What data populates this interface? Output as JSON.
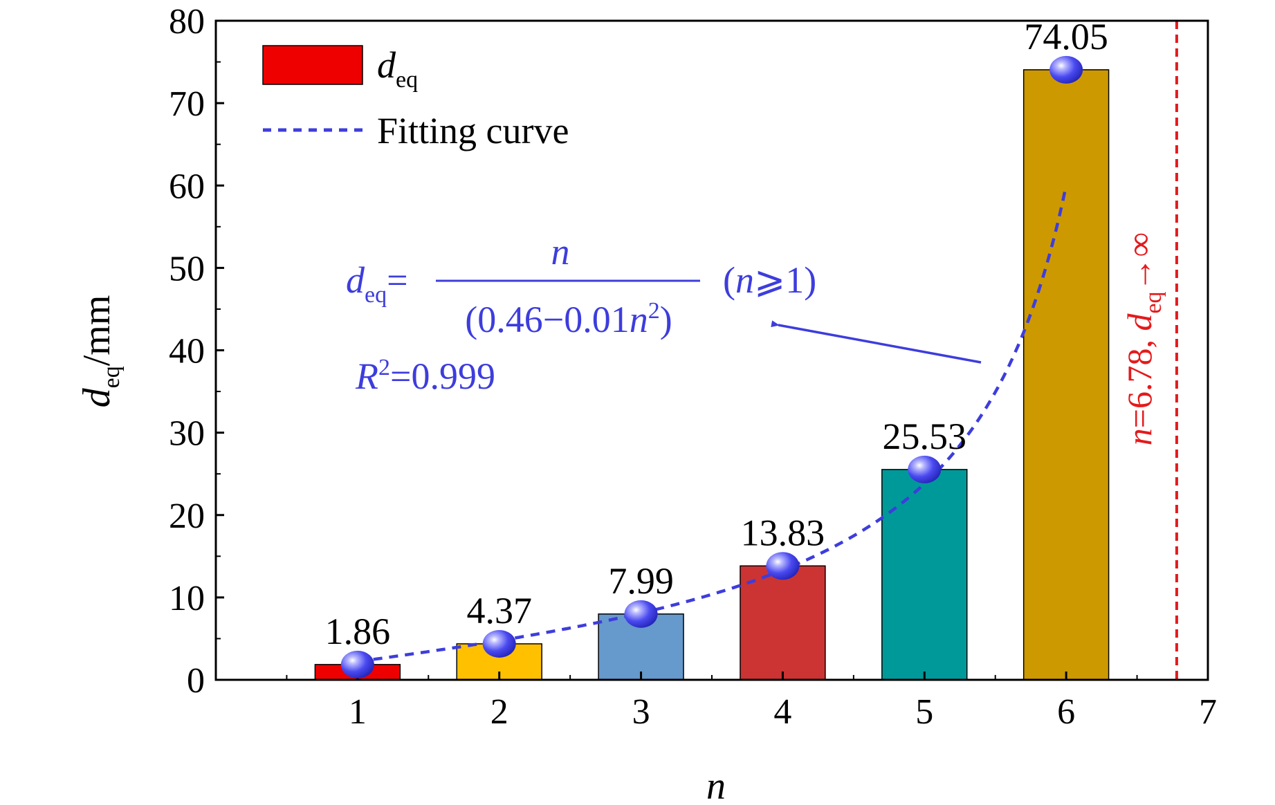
{
  "chart_data": {
    "type": "bar",
    "xlabel": "n",
    "ylabel": "d",
    "ylabel_sub": "eq",
    "ylabel_unit": "/mm",
    "xlim": [
      0,
      7
    ],
    "ylim": [
      0,
      80
    ],
    "xticks": [
      1,
      2,
      3,
      4,
      5,
      6,
      7
    ],
    "yticks": [
      0,
      10,
      20,
      30,
      40,
      50,
      60,
      70,
      80
    ],
    "categories": [
      1,
      2,
      3,
      4,
      5,
      6
    ],
    "values": [
      1.86,
      4.37,
      7.99,
      13.83,
      25.53,
      74.05
    ],
    "value_labels": [
      "1.86",
      "4.37",
      "7.99",
      "13.83",
      "25.53",
      "74.05"
    ],
    "bar_colors": [
      "#ee0000",
      "#ffc000",
      "#6699cc",
      "#cc3333",
      "#009999",
      "#cc9900"
    ],
    "legend": {
      "position": "top-left",
      "bar_entry": {
        "main": "d",
        "sub": "eq",
        "color": "#ee0000"
      },
      "curve_entry": {
        "label": "Fitting curve",
        "color": "#3d3ddd"
      }
    },
    "fit": {
      "color": "#3d3ddd",
      "lhs_main": "d",
      "lhs_sub": "eq",
      "lhs_eq": "=",
      "numerator": "n",
      "den_open": "(0.46−0.01",
      "den_var": "n",
      "den_sup": "2",
      "den_close": ")",
      "condition_open": "(",
      "condition_var": "n",
      "condition_rest": "⩾1)",
      "r2_main": "R",
      "r2_sup": "2",
      "r2_value": "=0.999",
      "coef_a": 0.46,
      "coef_b": 0.01
    },
    "asymptote": {
      "x": 6.78,
      "color": "#e41a1c",
      "label_var": "n",
      "label_value": "=6.78, ",
      "label_main": "d",
      "label_sub": "eq",
      "label_arrow": "→∞"
    },
    "grid": false
  }
}
